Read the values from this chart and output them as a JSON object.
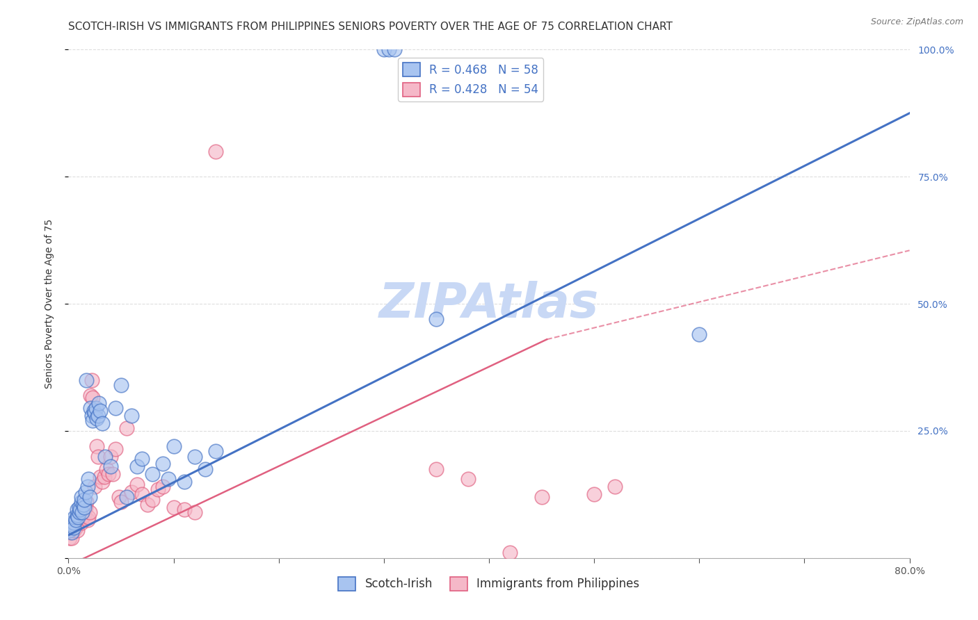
{
  "title": "SCOTCH-IRISH VS IMMIGRANTS FROM PHILIPPINES SENIORS POVERTY OVER THE AGE OF 75 CORRELATION CHART",
  "source": "Source: ZipAtlas.com",
  "ylabel": "Seniors Poverty Over the Age of 75",
  "xlim": [
    0.0,
    0.8
  ],
  "ylim": [
    0.0,
    1.0
  ],
  "xticks": [
    0.0,
    0.1,
    0.2,
    0.3,
    0.4,
    0.5,
    0.6,
    0.7,
    0.8
  ],
  "yticks": [
    0.0,
    0.25,
    0.5,
    0.75,
    1.0
  ],
  "legend1_r": "R = 0.468",
  "legend1_n": "N = 58",
  "legend2_r": "R = 0.428",
  "legend2_n": "N = 54",
  "series1_color": "#a8c4f0",
  "series2_color": "#f5b8c8",
  "line1_color": "#4472c4",
  "line2_color": "#e06080",
  "watermark": "ZIPAtlas",
  "scotch_irish_x": [
    0.001,
    0.002,
    0.003,
    0.003,
    0.004,
    0.005,
    0.005,
    0.006,
    0.007,
    0.008,
    0.008,
    0.009,
    0.01,
    0.01,
    0.011,
    0.012,
    0.012,
    0.013,
    0.014,
    0.015,
    0.015,
    0.016,
    0.017,
    0.018,
    0.019,
    0.02,
    0.021,
    0.022,
    0.023,
    0.024,
    0.025,
    0.026,
    0.027,
    0.028,
    0.029,
    0.03,
    0.032,
    0.035,
    0.04,
    0.045,
    0.05,
    0.055,
    0.06,
    0.065,
    0.07,
    0.08,
    0.09,
    0.095,
    0.1,
    0.11,
    0.12,
    0.13,
    0.14,
    0.3,
    0.305,
    0.31,
    0.35,
    0.6
  ],
  "scotch_irish_y": [
    0.055,
    0.06,
    0.05,
    0.07,
    0.065,
    0.07,
    0.06,
    0.08,
    0.075,
    0.085,
    0.095,
    0.08,
    0.09,
    0.1,
    0.095,
    0.11,
    0.12,
    0.09,
    0.105,
    0.1,
    0.115,
    0.13,
    0.35,
    0.14,
    0.155,
    0.12,
    0.295,
    0.28,
    0.27,
    0.29,
    0.285,
    0.295,
    0.275,
    0.28,
    0.305,
    0.29,
    0.265,
    0.2,
    0.18,
    0.295,
    0.34,
    0.12,
    0.28,
    0.18,
    0.195,
    0.165,
    0.185,
    0.155,
    0.22,
    0.15,
    0.2,
    0.175,
    0.21,
    1.0,
    1.0,
    1.0,
    0.47,
    0.44
  ],
  "philippines_x": [
    0.001,
    0.002,
    0.003,
    0.004,
    0.005,
    0.006,
    0.007,
    0.008,
    0.009,
    0.01,
    0.011,
    0.012,
    0.013,
    0.014,
    0.015,
    0.016,
    0.017,
    0.018,
    0.019,
    0.02,
    0.021,
    0.022,
    0.023,
    0.025,
    0.027,
    0.028,
    0.03,
    0.032,
    0.034,
    0.036,
    0.038,
    0.04,
    0.042,
    0.045,
    0.048,
    0.05,
    0.055,
    0.06,
    0.065,
    0.07,
    0.075,
    0.08,
    0.085,
    0.09,
    0.1,
    0.11,
    0.12,
    0.14,
    0.35,
    0.38,
    0.42,
    0.45,
    0.5,
    0.52
  ],
  "philippines_y": [
    0.04,
    0.05,
    0.04,
    0.06,
    0.055,
    0.065,
    0.06,
    0.055,
    0.07,
    0.075,
    0.085,
    0.07,
    0.08,
    0.095,
    0.085,
    0.1,
    0.11,
    0.075,
    0.08,
    0.09,
    0.32,
    0.35,
    0.315,
    0.14,
    0.22,
    0.2,
    0.16,
    0.15,
    0.16,
    0.175,
    0.165,
    0.2,
    0.165,
    0.215,
    0.12,
    0.11,
    0.255,
    0.13,
    0.145,
    0.125,
    0.105,
    0.115,
    0.135,
    0.14,
    0.1,
    0.095,
    0.09,
    0.8,
    0.175,
    0.155,
    0.01,
    0.12,
    0.125,
    0.14
  ],
  "line1_x0": 0.0,
  "line1_y0": 0.045,
  "line1_x1": 0.8,
  "line1_y1": 0.875,
  "line2_solid_x0": 0.0,
  "line2_solid_y0": -0.015,
  "line2_solid_x1": 0.455,
  "line2_solid_y1": 0.43,
  "line2_dash_x0": 0.455,
  "line2_dash_y0": 0.43,
  "line2_dash_x1": 0.8,
  "line2_dash_y1": 0.605,
  "background_color": "#ffffff",
  "grid_color": "#dddddd",
  "title_fontsize": 11,
  "axis_label_fontsize": 10,
  "tick_fontsize": 10,
  "legend_fontsize": 12,
  "watermark_color": "#c8d8f5",
  "watermark_fontsize": 50,
  "right_tick_color": "#4472c4",
  "bottom_legend_label1": "Scotch-Irish",
  "bottom_legend_label2": "Immigrants from Philippines"
}
